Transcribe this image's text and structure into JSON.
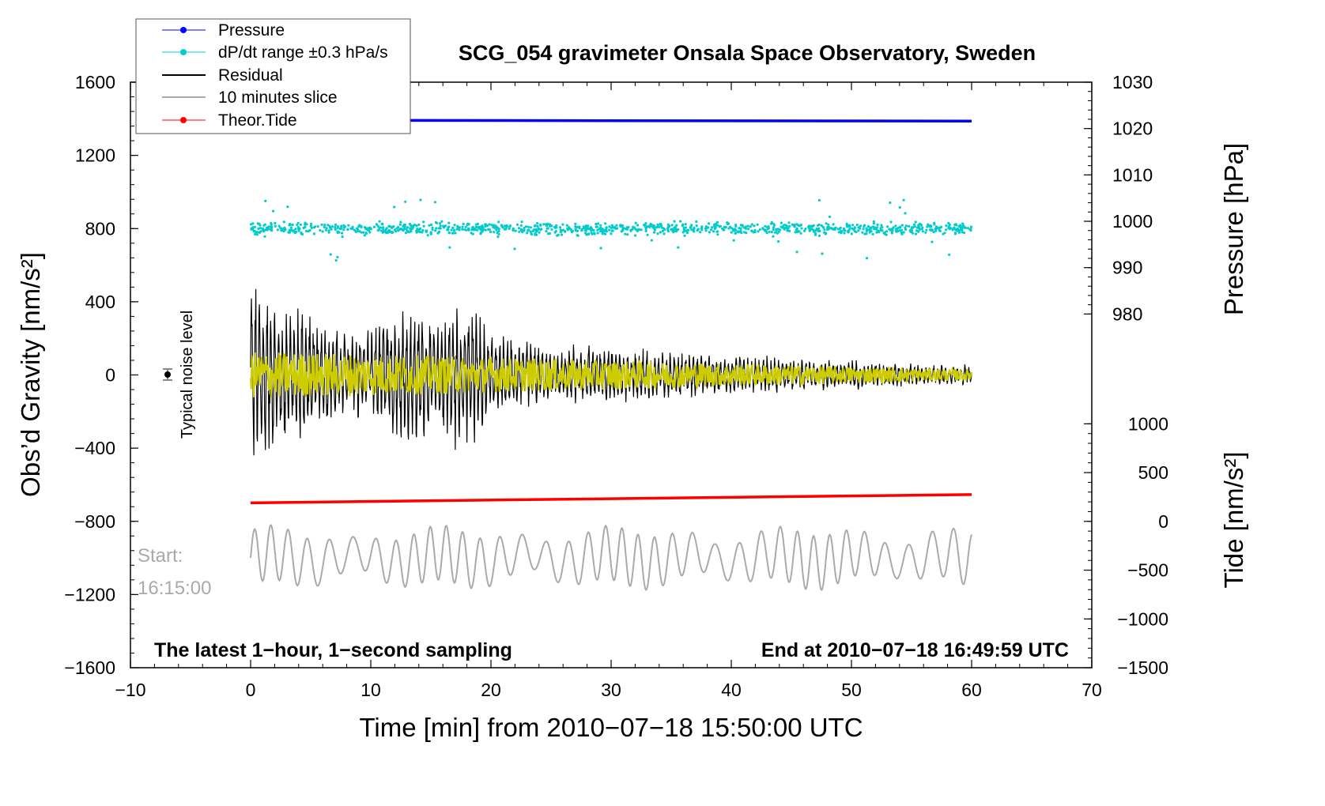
{
  "chart_data": {
    "type": "line",
    "title": "SCG_054 gravimeter Onsala Space Observatory, Sweden",
    "xlabel": "Time [min] from 2010−07−18 15:50:00 UTC",
    "ylabel": "Obs’d Gravity [nm/s²]",
    "ylabel_right_top": "Pressure [hPa]",
    "ylabel_right_bottom": "Tide [nm/s²]",
    "xlim": [
      -10,
      70
    ],
    "ylim": [
      -1600,
      1600
    ],
    "pressure_axis": {
      "lim": [
        980,
        1030
      ],
      "ticks": [
        "1030",
        "1020",
        "1010",
        "1000",
        "990",
        "980"
      ]
    },
    "tide_axis": {
      "lim": [
        -1500,
        1000
      ],
      "ticks": [
        "1000",
        "500",
        "0",
        "−500",
        "−1000",
        "−1500"
      ]
    },
    "x_ticks": [
      "−10",
      "0",
      "10",
      "20",
      "30",
      "40",
      "50",
      "60",
      "70"
    ],
    "y_ticks": [
      "1600",
      "1200",
      "800",
      "400",
      "0",
      "−400",
      "−800",
      "−1200",
      "−1600"
    ],
    "grid": false,
    "legend_position": "top-left",
    "legend": [
      {
        "label": "Pressure",
        "color": "#0000ff",
        "marker": true
      },
      {
        "label": "dP/dt range ±0.3 hPa/s",
        "color": "#00cccc",
        "marker": true
      },
      {
        "label": "Residual",
        "color": "#000000",
        "marker": false
      },
      {
        "label": "10 minutes slice",
        "color": "#aaaaaa",
        "marker": false
      },
      {
        "label": "Theor.Tide",
        "color": "#ff0000",
        "marker": true
      }
    ],
    "series": [
      {
        "name": "Pressure",
        "axis": "pressure",
        "color": "#0000ff",
        "x": [
          0,
          60
        ],
        "values": [
          1021.8,
          1021.6
        ]
      },
      {
        "name": "dP/dt range ±0.3 hPa/s",
        "axis": "gravity",
        "color": "#00cccc",
        "x": [
          0,
          60
        ],
        "center": 800,
        "spread": 40
      },
      {
        "name": "Residual",
        "axis": "gravity",
        "color": "#000000",
        "x_envelope": [
          0,
          2,
          5,
          8,
          10,
          13,
          15,
          18,
          20,
          25,
          30,
          35,
          40,
          45,
          50,
          55,
          60
        ],
        "amplitude_envelope": [
          620,
          500,
          420,
          300,
          280,
          560,
          340,
          520,
          250,
          200,
          180,
          150,
          120,
          110,
          90,
          70,
          60
        ]
      },
      {
        "name": "Yellow smoothed residual",
        "axis": "gravity",
        "color": "#cccc00",
        "x": [
          0,
          60
        ],
        "amplitude": [
          130,
          30
        ]
      },
      {
        "name": "Theor.Tide",
        "axis": "tide",
        "color": "#ff0000",
        "x": [
          0,
          60
        ],
        "values": [
          190,
          275
        ]
      },
      {
        "name": "10 minutes slice",
        "axis": "gravity",
        "color": "#aaaaaa",
        "x": [
          0,
          60
        ],
        "center": -1000,
        "amplitude": 150
      }
    ],
    "annotations": {
      "bottom_left": "The latest 1−hour, 1−second sampling",
      "bottom_right": "End at 2010−07−18 16:49:59 UTC",
      "start_label": "Start:",
      "start_time": "16:15:00",
      "noise_label": "Typical noise level",
      "noise_marker": {
        "x": -7,
        "y": 0,
        "error": 40
      }
    }
  }
}
